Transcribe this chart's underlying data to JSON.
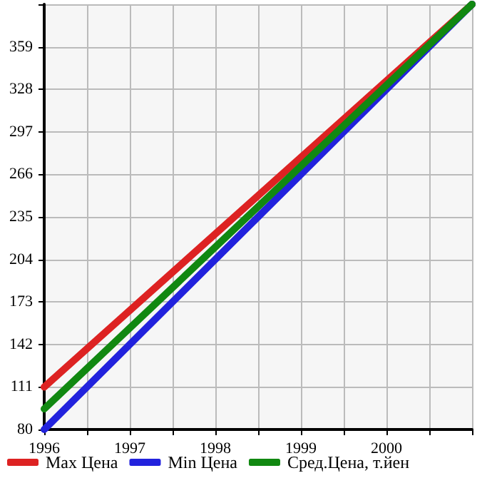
{
  "chart_data": {
    "type": "line",
    "x": [
      1996,
      2001
    ],
    "series": [
      {
        "name": "Max Цена",
        "color": "#dd2222",
        "values": [
          111,
          390
        ]
      },
      {
        "name": "Min Цена",
        "color": "#2222dd",
        "values": [
          80,
          390
        ]
      },
      {
        "name": "Сред.Цена, т.йен",
        "color": "#118811",
        "values": [
          95,
          390
        ]
      }
    ],
    "xlim": [
      1996,
      2001
    ],
    "xticks": [
      1996,
      {
        "value": 1996.5,
        "label": null
      },
      1997,
      {
        "value": 1997.5,
        "label": null
      },
      1998,
      {
        "value": 1998.5,
        "label": null
      },
      1999,
      {
        "value": 1999.5,
        "label": null
      },
      2000,
      {
        "value": 2000.5,
        "label": null
      },
      {
        "value": 2001,
        "label": null
      }
    ],
    "ylim": [
      80,
      390
    ],
    "yticks": [
      80,
      111,
      142,
      173,
      204,
      235,
      266,
      297,
      328,
      359,
      {
        "value": 390,
        "label": null
      }
    ],
    "grid": true,
    "legend": "bottom",
    "marker": "none",
    "line_style": "solid"
  }
}
